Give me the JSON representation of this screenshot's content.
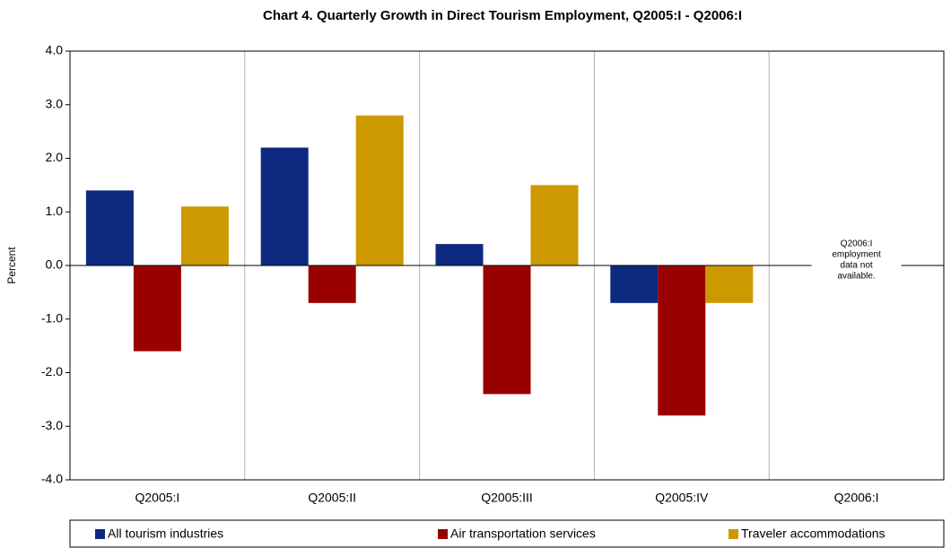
{
  "chart_data": {
    "type": "bar",
    "title": "Chart 4. Quarterly Growth in Direct Tourism Employment, Q2005:I - Q2006:I",
    "y_label": "Percent",
    "categories": [
      "Q2005:I",
      "Q2005:II",
      "Q2005:III",
      "Q2005:IV",
      "Q2006:I"
    ],
    "series": [
      {
        "name": "All tourism industries",
        "color": "#0d2a80",
        "values": [
          1.4,
          2.2,
          0.4,
          -0.7,
          null
        ]
      },
      {
        "name": "Air transportation services",
        "color": "#990000",
        "values": [
          -1.6,
          -0.7,
          -2.4,
          -2.8,
          null
        ]
      },
      {
        "name": "Traveler accommodations",
        "color": "#cc9900",
        "values": [
          1.1,
          2.8,
          1.5,
          -0.7,
          null
        ]
      }
    ],
    "annotation": [
      "Q2006:I",
      "employment",
      "data not",
      "available."
    ],
    "ylim": [
      -4,
      4
    ],
    "yticks": [
      {
        "value": 4,
        "label": "4.0"
      },
      {
        "value": 3,
        "label": "3.0"
      },
      {
        "value": 2,
        "label": "2.0"
      },
      {
        "value": 1,
        "label": "1.0"
      },
      {
        "value": 0,
        "label": "0.0"
      },
      {
        "value": -1,
        "label": "-1.0"
      },
      {
        "value": -2,
        "label": "-2.0"
      },
      {
        "value": -3,
        "label": "-3.0"
      },
      {
        "value": -4,
        "label": "-4.0"
      }
    ],
    "legend": "bottom"
  }
}
